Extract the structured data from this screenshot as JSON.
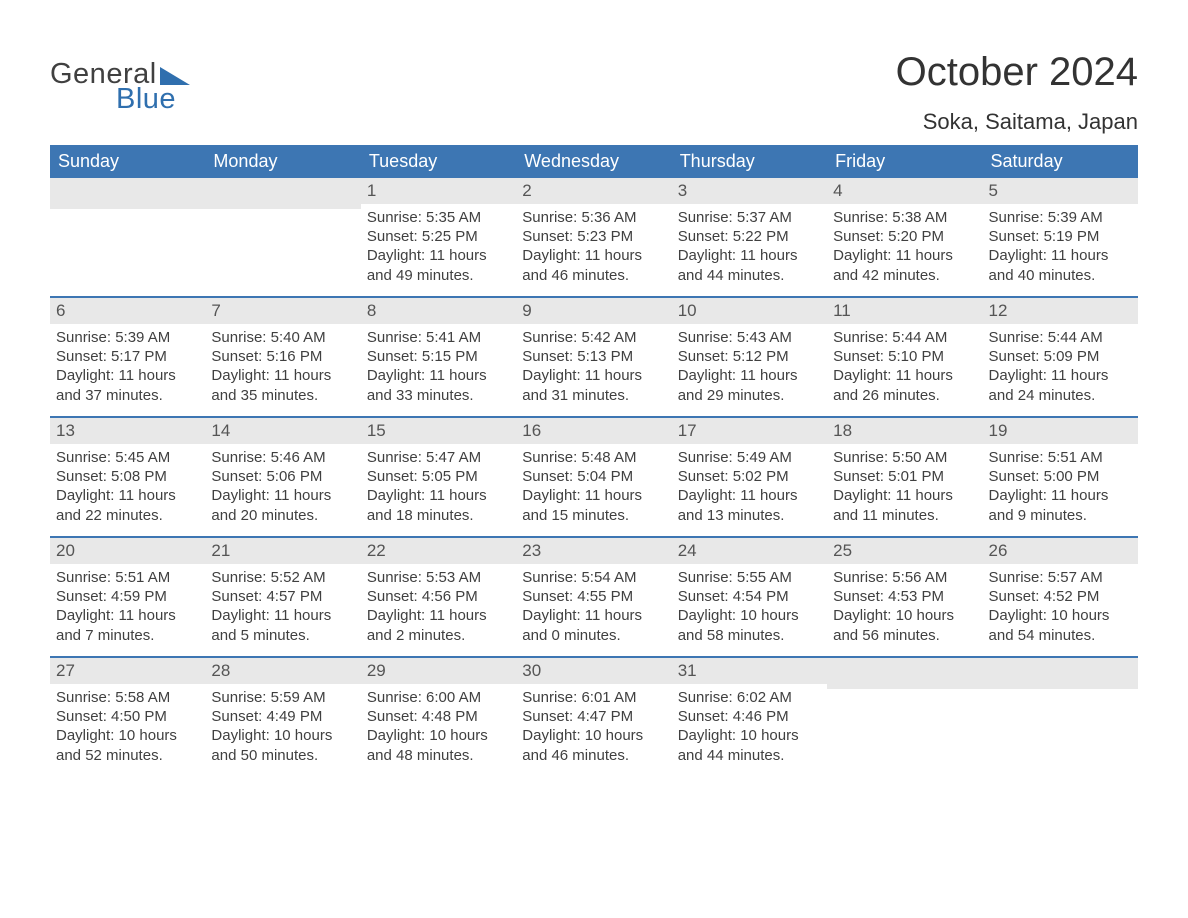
{
  "logo": {
    "text_general": "General",
    "text_blue": "Blue"
  },
  "title": "October 2024",
  "location": "Soka, Saitama, Japan",
  "colors": {
    "header_bg": "#3d76b3",
    "week_border": "#3d76b3",
    "daynum_bg": "#e8e8e8",
    "text": "#404040",
    "logo_blue": "#2f6fae"
  },
  "weekdays": [
    "Sunday",
    "Monday",
    "Tuesday",
    "Wednesday",
    "Thursday",
    "Friday",
    "Saturday"
  ],
  "weeks": [
    [
      {
        "blank": true
      },
      {
        "blank": true
      },
      {
        "num": "1",
        "sunrise": "Sunrise: 5:35 AM",
        "sunset": "Sunset: 5:25 PM",
        "day1": "Daylight: 11 hours",
        "day2": "and 49 minutes."
      },
      {
        "num": "2",
        "sunrise": "Sunrise: 5:36 AM",
        "sunset": "Sunset: 5:23 PM",
        "day1": "Daylight: 11 hours",
        "day2": "and 46 minutes."
      },
      {
        "num": "3",
        "sunrise": "Sunrise: 5:37 AM",
        "sunset": "Sunset: 5:22 PM",
        "day1": "Daylight: 11 hours",
        "day2": "and 44 minutes."
      },
      {
        "num": "4",
        "sunrise": "Sunrise: 5:38 AM",
        "sunset": "Sunset: 5:20 PM",
        "day1": "Daylight: 11 hours",
        "day2": "and 42 minutes."
      },
      {
        "num": "5",
        "sunrise": "Sunrise: 5:39 AM",
        "sunset": "Sunset: 5:19 PM",
        "day1": "Daylight: 11 hours",
        "day2": "and 40 minutes."
      }
    ],
    [
      {
        "num": "6",
        "sunrise": "Sunrise: 5:39 AM",
        "sunset": "Sunset: 5:17 PM",
        "day1": "Daylight: 11 hours",
        "day2": "and 37 minutes."
      },
      {
        "num": "7",
        "sunrise": "Sunrise: 5:40 AM",
        "sunset": "Sunset: 5:16 PM",
        "day1": "Daylight: 11 hours",
        "day2": "and 35 minutes."
      },
      {
        "num": "8",
        "sunrise": "Sunrise: 5:41 AM",
        "sunset": "Sunset: 5:15 PM",
        "day1": "Daylight: 11 hours",
        "day2": "and 33 minutes."
      },
      {
        "num": "9",
        "sunrise": "Sunrise: 5:42 AM",
        "sunset": "Sunset: 5:13 PM",
        "day1": "Daylight: 11 hours",
        "day2": "and 31 minutes."
      },
      {
        "num": "10",
        "sunrise": "Sunrise: 5:43 AM",
        "sunset": "Sunset: 5:12 PM",
        "day1": "Daylight: 11 hours",
        "day2": "and 29 minutes."
      },
      {
        "num": "11",
        "sunrise": "Sunrise: 5:44 AM",
        "sunset": "Sunset: 5:10 PM",
        "day1": "Daylight: 11 hours",
        "day2": "and 26 minutes."
      },
      {
        "num": "12",
        "sunrise": "Sunrise: 5:44 AM",
        "sunset": "Sunset: 5:09 PM",
        "day1": "Daylight: 11 hours",
        "day2": "and 24 minutes."
      }
    ],
    [
      {
        "num": "13",
        "sunrise": "Sunrise: 5:45 AM",
        "sunset": "Sunset: 5:08 PM",
        "day1": "Daylight: 11 hours",
        "day2": "and 22 minutes."
      },
      {
        "num": "14",
        "sunrise": "Sunrise: 5:46 AM",
        "sunset": "Sunset: 5:06 PM",
        "day1": "Daylight: 11 hours",
        "day2": "and 20 minutes."
      },
      {
        "num": "15",
        "sunrise": "Sunrise: 5:47 AM",
        "sunset": "Sunset: 5:05 PM",
        "day1": "Daylight: 11 hours",
        "day2": "and 18 minutes."
      },
      {
        "num": "16",
        "sunrise": "Sunrise: 5:48 AM",
        "sunset": "Sunset: 5:04 PM",
        "day1": "Daylight: 11 hours",
        "day2": "and 15 minutes."
      },
      {
        "num": "17",
        "sunrise": "Sunrise: 5:49 AM",
        "sunset": "Sunset: 5:02 PM",
        "day1": "Daylight: 11 hours",
        "day2": "and 13 minutes."
      },
      {
        "num": "18",
        "sunrise": "Sunrise: 5:50 AM",
        "sunset": "Sunset: 5:01 PM",
        "day1": "Daylight: 11 hours",
        "day2": "and 11 minutes."
      },
      {
        "num": "19",
        "sunrise": "Sunrise: 5:51 AM",
        "sunset": "Sunset: 5:00 PM",
        "day1": "Daylight: 11 hours",
        "day2": "and 9 minutes."
      }
    ],
    [
      {
        "num": "20",
        "sunrise": "Sunrise: 5:51 AM",
        "sunset": "Sunset: 4:59 PM",
        "day1": "Daylight: 11 hours",
        "day2": "and 7 minutes."
      },
      {
        "num": "21",
        "sunrise": "Sunrise: 5:52 AM",
        "sunset": "Sunset: 4:57 PM",
        "day1": "Daylight: 11 hours",
        "day2": "and 5 minutes."
      },
      {
        "num": "22",
        "sunrise": "Sunrise: 5:53 AM",
        "sunset": "Sunset: 4:56 PM",
        "day1": "Daylight: 11 hours",
        "day2": "and 2 minutes."
      },
      {
        "num": "23",
        "sunrise": "Sunrise: 5:54 AM",
        "sunset": "Sunset: 4:55 PM",
        "day1": "Daylight: 11 hours",
        "day2": "and 0 minutes."
      },
      {
        "num": "24",
        "sunrise": "Sunrise: 5:55 AM",
        "sunset": "Sunset: 4:54 PM",
        "day1": "Daylight: 10 hours",
        "day2": "and 58 minutes."
      },
      {
        "num": "25",
        "sunrise": "Sunrise: 5:56 AM",
        "sunset": "Sunset: 4:53 PM",
        "day1": "Daylight: 10 hours",
        "day2": "and 56 minutes."
      },
      {
        "num": "26",
        "sunrise": "Sunrise: 5:57 AM",
        "sunset": "Sunset: 4:52 PM",
        "day1": "Daylight: 10 hours",
        "day2": "and 54 minutes."
      }
    ],
    [
      {
        "num": "27",
        "sunrise": "Sunrise: 5:58 AM",
        "sunset": "Sunset: 4:50 PM",
        "day1": "Daylight: 10 hours",
        "day2": "and 52 minutes."
      },
      {
        "num": "28",
        "sunrise": "Sunrise: 5:59 AM",
        "sunset": "Sunset: 4:49 PM",
        "day1": "Daylight: 10 hours",
        "day2": "and 50 minutes."
      },
      {
        "num": "29",
        "sunrise": "Sunrise: 6:00 AM",
        "sunset": "Sunset: 4:48 PM",
        "day1": "Daylight: 10 hours",
        "day2": "and 48 minutes."
      },
      {
        "num": "30",
        "sunrise": "Sunrise: 6:01 AM",
        "sunset": "Sunset: 4:47 PM",
        "day1": "Daylight: 10 hours",
        "day2": "and 46 minutes."
      },
      {
        "num": "31",
        "sunrise": "Sunrise: 6:02 AM",
        "sunset": "Sunset: 4:46 PM",
        "day1": "Daylight: 10 hours",
        "day2": "and 44 minutes."
      },
      {
        "blank": true
      },
      {
        "blank": true
      }
    ]
  ]
}
